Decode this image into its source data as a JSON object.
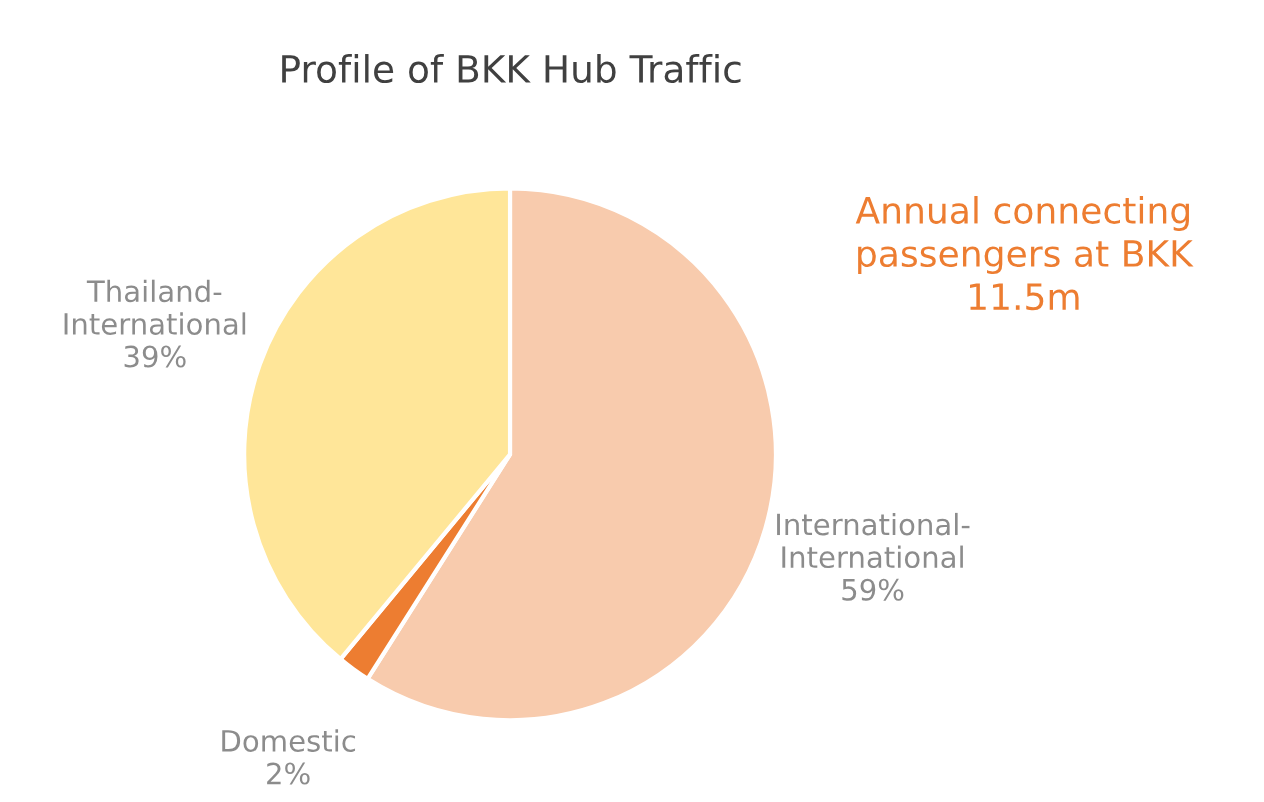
{
  "chart_data": {
    "type": "pie",
    "title": "Profile of BKK Hub Traffic",
    "categories": [
      "International-International",
      "Domestic",
      "Thailand-International"
    ],
    "values": [
      59,
      2,
      39
    ],
    "colors": [
      "#f8cbad",
      "#ed7d31",
      "#ffe699"
    ],
    "value_labels": [
      "59%",
      "2%",
      "39%"
    ],
    "annotations": [
      "Annual connecting\npassengers at BKK\n11.5m"
    ]
  }
}
